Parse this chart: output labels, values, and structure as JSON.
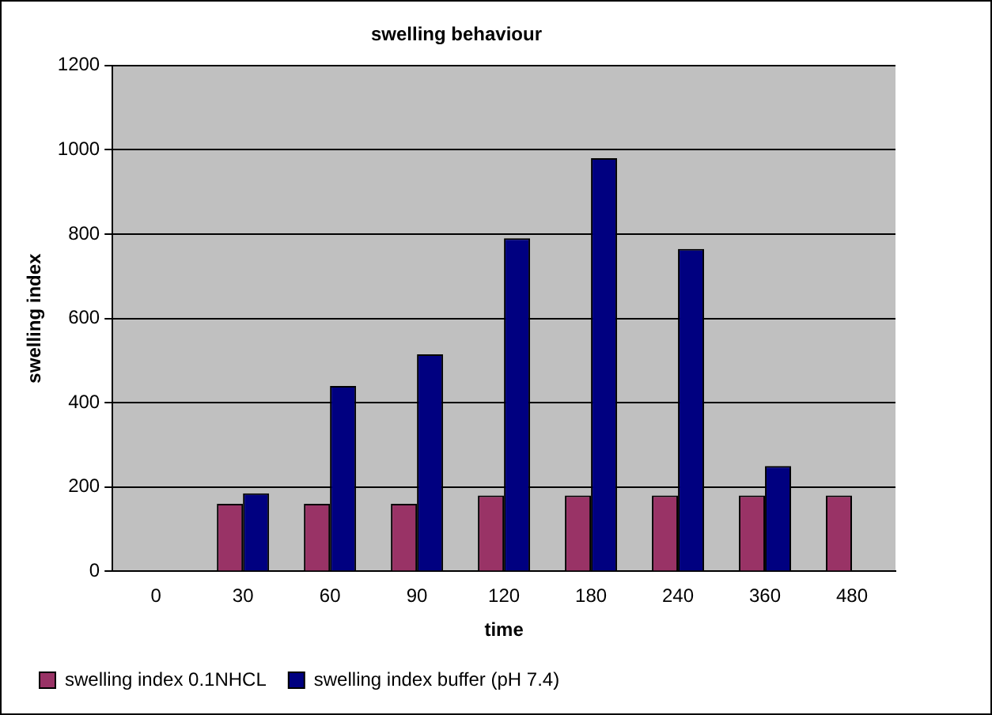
{
  "chart_data": {
    "type": "bar",
    "title": "swelling behaviour",
    "xlabel": "time",
    "ylabel": "swelling index",
    "categories": [
      "0",
      "30",
      "60",
      "90",
      "120",
      "180",
      "240",
      "360",
      "480"
    ],
    "series": [
      {
        "name": "swelling index 0.1NHCL",
        "color": "#993366",
        "values": [
          null,
          160,
          160,
          160,
          180,
          180,
          180,
          180,
          180
        ]
      },
      {
        "name": "swelling index buffer (pH 7.4)",
        "color": "#000080",
        "values": [
          null,
          185,
          440,
          515,
          790,
          980,
          765,
          250,
          null
        ]
      }
    ],
    "ylim": [
      0,
      1200
    ],
    "yticks": [
      0,
      200,
      400,
      600,
      800,
      1000,
      1200
    ],
    "grid": "y",
    "legend": "bottom"
  }
}
